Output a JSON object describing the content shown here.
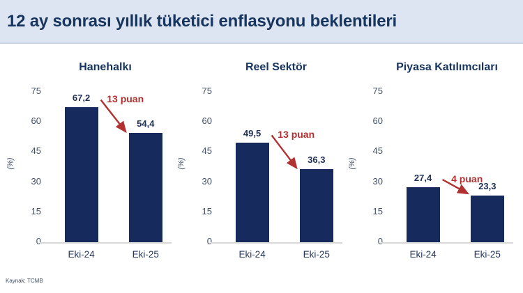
{
  "header": {
    "title": "12 ay sonrası yıllık tüketici enflasyonu beklentileri"
  },
  "footer": {
    "source": "Kaynak: TCMB"
  },
  "colors": {
    "bar": "#172a5e",
    "accent_red": "#b13030",
    "title_navy": "#17355e",
    "header_bg": "#dce5f1",
    "axis_text": "#3f4e66",
    "baseline": "#d8d8d8"
  },
  "chart_data": [
    {
      "type": "bar",
      "title": "Hanehalkı",
      "categories": [
        "Eki-24",
        "Eki-25"
      ],
      "values": [
        67.2,
        54.4
      ],
      "value_labels": [
        "67,2",
        "54,4"
      ],
      "annotation": "13 puan",
      "ylabel": "(%)",
      "yticks": [
        0,
        15,
        30,
        45,
        60,
        75
      ],
      "ylim": [
        0,
        75
      ],
      "grid": false,
      "legend": false
    },
    {
      "type": "bar",
      "title": "Reel Sektör",
      "categories": [
        "Eki-24",
        "Eki-25"
      ],
      "values": [
        49.5,
        36.3
      ],
      "value_labels": [
        "49,5",
        "36,3"
      ],
      "annotation": "13 puan",
      "ylabel": "(%)",
      "yticks": [
        0,
        15,
        30,
        45,
        60,
        75
      ],
      "ylim": [
        0,
        75
      ],
      "grid": false,
      "legend": false
    },
    {
      "type": "bar",
      "title": "Piyasa Katılımcıları",
      "categories": [
        "Eki-24",
        "Eki-25"
      ],
      "values": [
        27.4,
        23.3
      ],
      "value_labels": [
        "27,4",
        "23,3"
      ],
      "annotation": "4 puan",
      "ylabel": "(%)",
      "yticks": [
        0,
        15,
        30,
        45,
        60,
        75
      ],
      "ylim": [
        0,
        75
      ],
      "grid": false,
      "legend": false
    }
  ]
}
